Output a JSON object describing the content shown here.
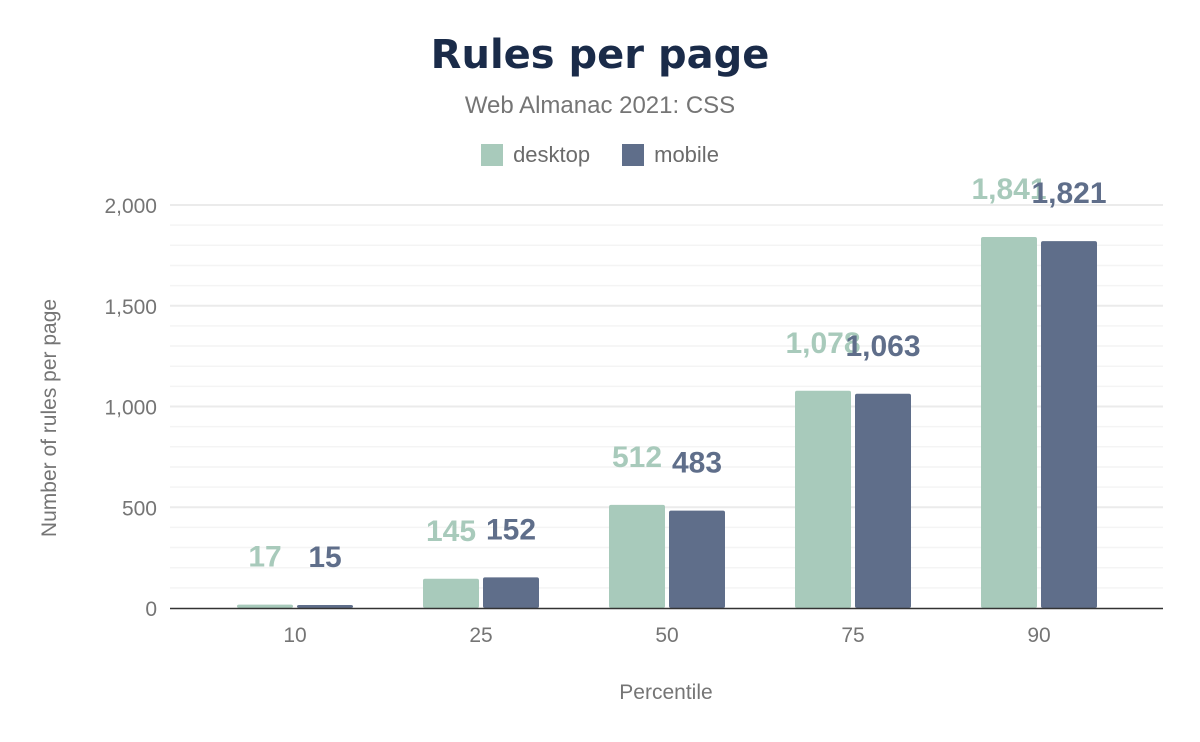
{
  "chart_data": {
    "type": "bar",
    "title": "Rules per page",
    "subtitle": "Web Almanac 2021: CSS",
    "xlabel": "Percentile",
    "ylabel": "Number of rules per page",
    "categories": [
      "10",
      "25",
      "50",
      "75",
      "90"
    ],
    "series": [
      {
        "name": "desktop",
        "color": "#a8cabb",
        "values": [
          17,
          145,
          512,
          1078,
          1841
        ],
        "labels": [
          "17",
          "145",
          "512",
          "1,078",
          "1,841"
        ]
      },
      {
        "name": "mobile",
        "color": "#5f6e8a",
        "values": [
          15,
          152,
          483,
          1063,
          1821
        ],
        "labels": [
          "15",
          "152",
          "483",
          "1,063",
          "1,821"
        ]
      }
    ],
    "ylim": [
      0,
      2000
    ],
    "yticks": [
      0,
      500,
      1000,
      1500,
      2000
    ],
    "ytick_labels": [
      "0",
      "500",
      "1,000",
      "1,500",
      "2,000"
    ],
    "minor_grid_step": 100,
    "grid": true,
    "legend_position": "top"
  }
}
